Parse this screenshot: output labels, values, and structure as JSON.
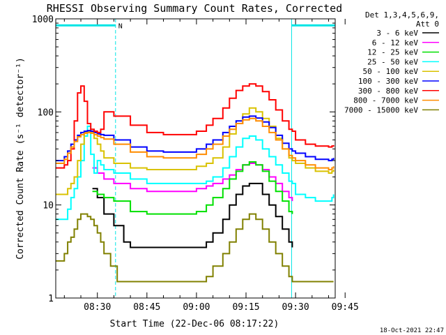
{
  "chart_data": {
    "type": "line",
    "title": "RHESSI Observing Summary Count Rates, Corrected",
    "xlabel": "Start Time (22-Dec-06 08:17:22)",
    "ylabel": "Corrected Count Rate (s⁻¹ detector⁻¹)",
    "xlim": [
      17.4,
      102
    ],
    "ylim": [
      1,
      1000
    ],
    "yscale": "log",
    "x_unit": "minutes after 08:00",
    "x_ticks": [
      {
        "value": 30,
        "label": "08:30"
      },
      {
        "value": 45,
        "label": "08:45"
      },
      {
        "value": 60,
        "label": "09:00"
      },
      {
        "value": 75,
        "label": "09:15"
      },
      {
        "value": 90,
        "label": "09:30"
      },
      {
        "value": 105,
        "label": "09:45"
      }
    ],
    "y_ticks": [
      {
        "value": 1,
        "label": "1"
      },
      {
        "value": 10,
        "label": "10"
      },
      {
        "value": 100,
        "label": "100"
      },
      {
        "value": 1000,
        "label": "1000"
      }
    ],
    "legend_header": [
      "Det 1,3,4,5,6,9,",
      "Att 0"
    ],
    "legend_position": "right",
    "timestamp": "18-Oct-2021 22:47",
    "flags": {
      "label": "N",
      "color": "#00e5e5",
      "night_intervals": [
        [
          17.4,
          35.5
        ],
        [
          88.8,
          102
        ]
      ],
      "level": 850
    },
    "series": [
      {
        "name": "3 - 6 keV",
        "color": "#000000",
        "x": [
          17.4,
          20,
          22,
          24,
          25,
          27,
          28.5,
          30,
          32,
          35,
          38,
          40,
          45,
          50,
          55,
          60,
          63,
          65,
          68,
          70,
          72,
          74,
          76,
          78,
          80,
          82,
          84,
          86,
          88,
          89,
          90
        ],
        "y": [
          null,
          null,
          null,
          null,
          null,
          null,
          15,
          12,
          8,
          6,
          4,
          3.5,
          3.5,
          3.5,
          3.5,
          3.5,
          4,
          5,
          7,
          10,
          13,
          16,
          17,
          17,
          13,
          10,
          7.5,
          5.5,
          4,
          3.5,
          null
        ]
      },
      {
        "name": "6 - 12 keV",
        "color": "#ff00ff",
        "x": [
          17.4,
          20,
          25,
          27,
          28.5,
          30,
          32,
          35,
          40,
          45,
          50,
          55,
          60,
          63,
          65,
          68,
          70,
          72,
          74,
          76,
          78,
          80,
          82,
          84,
          86,
          88,
          89
        ],
        "y": [
          null,
          null,
          null,
          null,
          25,
          22,
          19,
          17,
          15,
          14,
          14,
          14,
          15,
          16,
          17,
          19,
          21,
          24,
          27,
          28,
          27,
          24,
          20,
          17,
          14,
          12,
          11
        ]
      },
      {
        "name": "12 - 25 keV",
        "color": "#00e000",
        "x": [
          17.4,
          20,
          25,
          27,
          28.5,
          30,
          32,
          35,
          40,
          45,
          50,
          55,
          60,
          63,
          65,
          68,
          70,
          72,
          74,
          76,
          78,
          80,
          82,
          84,
          86,
          88,
          89
        ],
        "y": [
          null,
          null,
          null,
          null,
          14,
          13,
          12,
          11,
          8.5,
          8,
          8,
          8,
          8.5,
          10,
          12,
          15,
          19,
          23,
          27,
          29,
          27,
          23,
          18,
          14,
          11,
          8.5,
          8
        ]
      },
      {
        "name": "25 - 50 keV",
        "color": "#00ffff",
        "x": [
          17.4,
          20,
          21,
          22,
          23,
          24,
          25,
          26,
          27,
          28,
          29,
          30,
          31,
          32,
          35,
          40,
          45,
          50,
          55,
          60,
          63,
          65,
          68,
          70,
          72,
          74,
          76,
          78,
          80,
          82,
          84,
          86,
          88,
          89,
          90,
          93,
          96,
          100,
          101,
          101.5
        ],
        "y": [
          7,
          7,
          9,
          12,
          15,
          20,
          30,
          55,
          70,
          35,
          22,
          30,
          27,
          24,
          22,
          19,
          17,
          17,
          17,
          17,
          18,
          20,
          25,
          33,
          42,
          52,
          55,
          50,
          40,
          33,
          27,
          22,
          18,
          17,
          13,
          12,
          11,
          11,
          12,
          13
        ]
      },
      {
        "name": "50 - 100 keV",
        "color": "#d9c200",
        "x": [
          17.4,
          20,
          21,
          22,
          23,
          24,
          25,
          26,
          27,
          28,
          29,
          30,
          31,
          32,
          35,
          40,
          45,
          50,
          55,
          60,
          63,
          65,
          68,
          70,
          72,
          74,
          76,
          78,
          80,
          82,
          84,
          86,
          88,
          89,
          90,
          93,
          96,
          100,
          101,
          101.5
        ],
        "y": [
          13,
          13,
          15,
          17,
          20,
          30,
          45,
          60,
          62,
          60,
          52,
          45,
          38,
          32,
          28,
          25,
          24,
          24,
          24,
          26,
          28,
          32,
          42,
          58,
          75,
          95,
          110,
          100,
          85,
          70,
          52,
          40,
          32,
          30,
          28,
          25,
          23,
          22,
          23,
          24
        ]
      },
      {
        "name": "100 - 300 keV",
        "color": "#0000ff",
        "x": [
          17.4,
          20,
          21,
          22,
          23,
          24,
          25,
          26,
          27,
          28,
          29,
          30,
          31,
          32,
          35,
          40,
          45,
          50,
          55,
          60,
          63,
          65,
          68,
          70,
          72,
          74,
          76,
          78,
          80,
          82,
          84,
          86,
          88,
          89,
          90,
          93,
          96,
          100,
          101,
          101.5
        ],
        "y": [
          30,
          33,
          38,
          45,
          50,
          56,
          60,
          62,
          63,
          62,
          60,
          58,
          57,
          56,
          50,
          42,
          38,
          37,
          37,
          40,
          45,
          50,
          60,
          70,
          80,
          88,
          90,
          86,
          78,
          68,
          56,
          46,
          40,
          38,
          36,
          33,
          31,
          30,
          31,
          32
        ]
      },
      {
        "name": "300 - 800 keV",
        "color": "#ff0000",
        "x": [
          17.4,
          20,
          21,
          22,
          23,
          24,
          25,
          26,
          27,
          28,
          29,
          30,
          31,
          32,
          35,
          40,
          45,
          50,
          55,
          60,
          63,
          65,
          68,
          70,
          72,
          74,
          76,
          78,
          80,
          82,
          84,
          86,
          88,
          89,
          90,
          93,
          96,
          100,
          101,
          101.5
        ],
        "y": [
          25,
          27,
          30,
          40,
          80,
          160,
          190,
          130,
          75,
          65,
          62,
          60,
          65,
          100,
          90,
          72,
          60,
          57,
          57,
          62,
          72,
          85,
          110,
          140,
          170,
          190,
          200,
          190,
          165,
          135,
          105,
          80,
          65,
          62,
          50,
          45,
          43,
          42,
          43,
          44
        ]
      },
      {
        "name": "800 - 7000 keV",
        "color": "#ff8c00",
        "x": [
          17.4,
          20,
          21,
          22,
          23,
          24,
          25,
          26,
          27,
          28,
          29,
          30,
          31,
          32,
          35,
          40,
          45,
          50,
          55,
          60,
          63,
          65,
          68,
          70,
          72,
          74,
          76,
          78,
          80,
          82,
          84,
          86,
          88,
          89,
          90,
          93,
          96,
          100,
          101,
          101.5
        ],
        "y": [
          28,
          31,
          36,
          42,
          48,
          54,
          57,
          59,
          60,
          59,
          57,
          55,
          53,
          51,
          45,
          37,
          33,
          32,
          32,
          35,
          40,
          45,
          55,
          65,
          75,
          82,
          85,
          80,
          70,
          60,
          50,
          40,
          34,
          32,
          30,
          27,
          25,
          24,
          25,
          26
        ]
      },
      {
        "name": "7000 - 15000 keV",
        "color": "#808000",
        "x": [
          17.4,
          20,
          21,
          22,
          23,
          24,
          25,
          26,
          27,
          28,
          29,
          30,
          31,
          32,
          34,
          36,
          38,
          40,
          45,
          50,
          55,
          60,
          63,
          65,
          68,
          70,
          72,
          74,
          76,
          78,
          80,
          82,
          84,
          86,
          88,
          89,
          90,
          93,
          96,
          100,
          101,
          101.5
        ],
        "y": [
          2.5,
          3,
          4,
          4.5,
          5.5,
          7,
          8,
          8,
          7.5,
          7,
          6,
          5,
          4,
          3,
          2.2,
          1.5,
          1.5,
          1.5,
          1.5,
          1.5,
          1.5,
          1.5,
          1.7,
          2.2,
          3,
          4,
          5.5,
          7,
          8,
          7,
          5.5,
          4,
          3,
          2.2,
          1.7,
          1.5,
          1.5,
          1.5,
          1.5,
          1.5,
          1.5,
          1.5
        ]
      }
    ]
  }
}
